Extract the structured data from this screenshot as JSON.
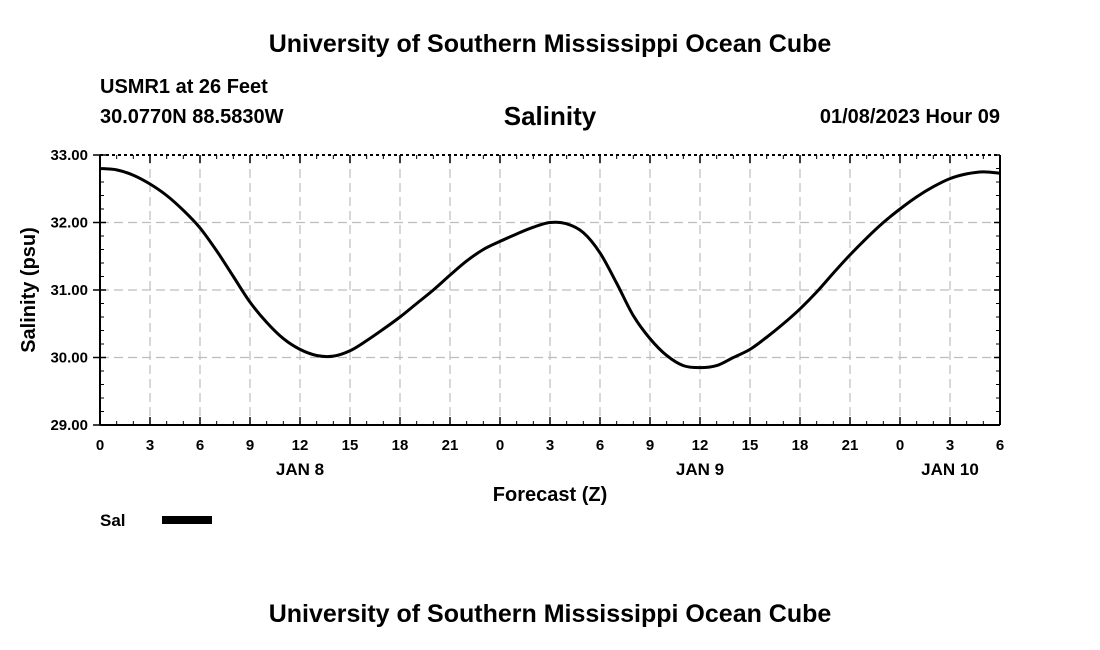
{
  "header": {
    "title": "University of Southern Mississippi Ocean Cube",
    "station": "USMR1 at 26 Feet",
    "coordinates": "30.0770N  88.5830W"
  },
  "footer": {
    "title": "University of Southern Mississippi Ocean Cube"
  },
  "chart_data": {
    "type": "line",
    "title": "Salinity",
    "datetime": "01/08/2023 Hour 09",
    "xlabel": "Forecast (Z)",
    "ylabel": "Salinity (psu)",
    "ylim": [
      29.0,
      33.0
    ],
    "yticks": [
      "29.00",
      "30.00",
      "31.00",
      "32.00",
      "33.00"
    ],
    "xlim": [
      0,
      54
    ],
    "xticks": [
      "0",
      "3",
      "6",
      "9",
      "12",
      "15",
      "18",
      "21",
      "0",
      "3",
      "6",
      "9",
      "12",
      "15",
      "18",
      "21",
      "0",
      "3",
      "6"
    ],
    "date_labels": [
      {
        "label": "JAN 8",
        "hour": 12
      },
      {
        "label": "JAN 9",
        "hour": 36
      },
      {
        "label": "JAN 10",
        "hour": 51
      }
    ],
    "grid": true,
    "legend": {
      "placement": "bottom-left",
      "label": "Sal"
    },
    "series": [
      {
        "name": "Sal",
        "color": "#000000",
        "x": [
          0,
          1,
          2,
          3,
          4,
          5,
          6,
          7,
          8,
          9,
          10,
          11,
          12,
          13,
          14,
          15,
          16,
          17,
          18,
          19,
          20,
          21,
          22,
          23,
          24,
          25,
          26,
          27,
          28,
          29,
          30,
          31,
          32,
          33,
          34,
          35,
          36,
          37,
          38,
          39,
          40,
          41,
          42,
          43,
          44,
          45,
          46,
          47,
          48,
          49,
          50,
          51,
          52,
          53,
          54
        ],
        "values": [
          32.8,
          32.78,
          32.7,
          32.57,
          32.4,
          32.18,
          31.92,
          31.58,
          31.2,
          30.82,
          30.52,
          30.28,
          30.12,
          30.03,
          30.02,
          30.1,
          30.25,
          30.42,
          30.6,
          30.8,
          31.0,
          31.22,
          31.43,
          31.6,
          31.72,
          31.83,
          31.93,
          32.0,
          31.98,
          31.85,
          31.55,
          31.1,
          30.62,
          30.28,
          30.03,
          29.88,
          29.85,
          29.88,
          30.0,
          30.12,
          30.3,
          30.5,
          30.72,
          30.97,
          31.25,
          31.52,
          31.77,
          32.0,
          32.2,
          32.38,
          32.53,
          32.65,
          32.72,
          32.75,
          32.73
        ]
      }
    ]
  }
}
